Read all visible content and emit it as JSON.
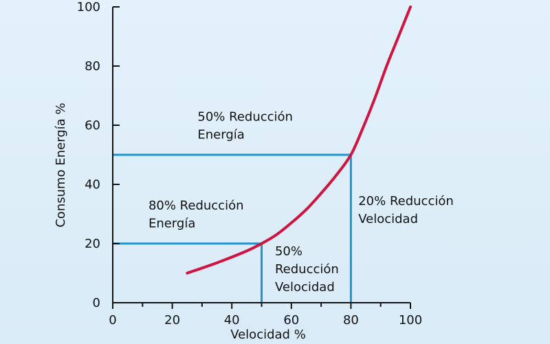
{
  "chart_data": {
    "type": "line",
    "title": "",
    "xlabel": "Velocidad %",
    "ylabel": "Consumo Energía %",
    "xlim": [
      0,
      100
    ],
    "ylim": [
      0,
      100
    ],
    "grid": false,
    "x_ticks": [
      0,
      20,
      40,
      60,
      80,
      100
    ],
    "x_tick_labels": [
      "0",
      "20",
      "40",
      "60",
      "80",
      "100"
    ],
    "x_minor_ticks": [
      10,
      30,
      50,
      70,
      90
    ],
    "y_ticks": [
      0,
      20,
      40,
      60,
      80,
      100
    ],
    "y_tick_labels": [
      "0",
      "20",
      "40",
      "60",
      "80",
      "100"
    ],
    "series": [
      {
        "color": "#d0143f",
        "points": [
          [
            25,
            10
          ],
          [
            35,
            13.5
          ],
          [
            45,
            17.5
          ],
          [
            50,
            20
          ],
          [
            55,
            23
          ],
          [
            60,
            27
          ],
          [
            65,
            31.5
          ],
          [
            70,
            37
          ],
          [
            75,
            43
          ],
          [
            80,
            50
          ],
          [
            84,
            59
          ],
          [
            88,
            69
          ],
          [
            92,
            80
          ],
          [
            96,
            90
          ],
          [
            100,
            100
          ]
        ]
      }
    ],
    "reference_lines": [
      {
        "name": "guide-line-y20",
        "color": "#1a96d4",
        "points": [
          [
            0,
            20
          ],
          [
            50,
            20
          ]
        ]
      },
      {
        "name": "guide-line-x50",
        "color": "#1a96d4",
        "points": [
          [
            50,
            20
          ],
          [
            50,
            0
          ]
        ]
      },
      {
        "name": "guide-line-y50",
        "color": "#1a96d4",
        "points": [
          [
            0,
            50
          ],
          [
            80,
            50
          ]
        ]
      },
      {
        "name": "guide-line-x80",
        "color": "#1a96d4",
        "points": [
          [
            80,
            50
          ],
          [
            80,
            0
          ]
        ]
      }
    ],
    "annotations": [
      {
        "name": "annotation-50-energia",
        "lines": [
          "50% Reducción",
          "Energía"
        ],
        "x": 28.5,
        "y": 61.5
      },
      {
        "name": "annotation-80-energia",
        "lines": [
          "80% Reducción",
          "Energía"
        ],
        "x": 12,
        "y": 31.5
      },
      {
        "name": "annotation-50-velocidad",
        "lines": [
          "50%",
          "Reducción",
          "Velocidad"
        ],
        "x": 54.5,
        "y": 16
      },
      {
        "name": "annotation-20-velocidad",
        "lines": [
          "20% Reducción",
          "Velocidad"
        ],
        "x": 82.5,
        "y": 33
      }
    ]
  }
}
